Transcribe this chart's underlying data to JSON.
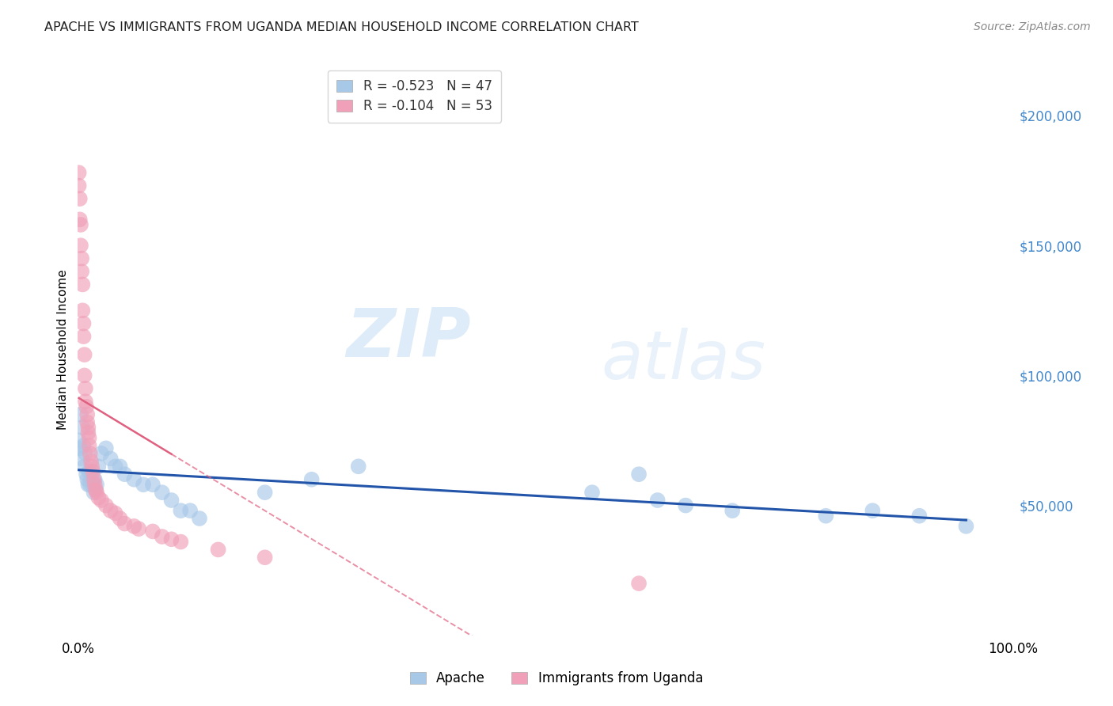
{
  "title": "APACHE VS IMMIGRANTS FROM UGANDA MEDIAN HOUSEHOLD INCOME CORRELATION CHART",
  "source": "Source: ZipAtlas.com",
  "ylabel": "Median Household Income",
  "xlim": [
    0,
    1.0
  ],
  "ylim": [
    0,
    220000
  ],
  "ytick_values": [
    50000,
    100000,
    150000,
    200000
  ],
  "ytick_labels": [
    "$50,000",
    "$100,000",
    "$150,000",
    "$200,000"
  ],
  "apache_color": "#a8c8e8",
  "uganda_color": "#f0a0b8",
  "apache_line_color": "#2255aa",
  "uganda_line_color": "#e06080",
  "watermark_zip": "ZIP",
  "watermark_atlas": "atlas",
  "background_color": "#ffffff",
  "grid_color": "#cccccc",
  "apache_x": [
    0.001,
    0.002,
    0.003,
    0.004,
    0.005,
    0.006,
    0.007,
    0.008,
    0.009,
    0.01,
    0.011,
    0.012,
    0.013,
    0.014,
    0.015,
    0.016,
    0.017,
    0.018,
    0.019,
    0.02,
    0.022,
    0.025,
    0.03,
    0.035,
    0.04,
    0.045,
    0.05,
    0.06,
    0.07,
    0.08,
    0.09,
    0.1,
    0.11,
    0.12,
    0.13,
    0.2,
    0.25,
    0.3,
    0.55,
    0.6,
    0.62,
    0.65,
    0.7,
    0.8,
    0.85,
    0.9,
    0.95
  ],
  "apache_y": [
    75000,
    72000,
    85000,
    68000,
    80000,
    73000,
    65000,
    70000,
    62000,
    60000,
    58000,
    63000,
    58000,
    62000,
    60000,
    58000,
    55000,
    60000,
    56000,
    58000,
    65000,
    70000,
    72000,
    68000,
    65000,
    65000,
    62000,
    60000,
    58000,
    58000,
    55000,
    52000,
    48000,
    48000,
    45000,
    55000,
    60000,
    65000,
    55000,
    62000,
    52000,
    50000,
    48000,
    46000,
    48000,
    46000,
    42000
  ],
  "uganda_x": [
    0.001,
    0.001,
    0.002,
    0.002,
    0.003,
    0.003,
    0.004,
    0.004,
    0.005,
    0.005,
    0.006,
    0.006,
    0.007,
    0.007,
    0.008,
    0.008,
    0.009,
    0.01,
    0.01,
    0.011,
    0.011,
    0.012,
    0.012,
    0.013,
    0.014,
    0.015,
    0.016,
    0.017,
    0.018,
    0.019,
    0.02,
    0.022,
    0.025,
    0.03,
    0.035,
    0.04,
    0.045,
    0.05,
    0.06,
    0.065,
    0.08,
    0.09,
    0.1,
    0.11,
    0.15,
    0.2,
    0.6
  ],
  "uganda_y": [
    178000,
    173000,
    168000,
    160000,
    158000,
    150000,
    145000,
    140000,
    135000,
    125000,
    120000,
    115000,
    108000,
    100000,
    95000,
    90000,
    88000,
    85000,
    82000,
    80000,
    78000,
    76000,
    73000,
    70000,
    67000,
    65000,
    63000,
    60000,
    58000,
    56000,
    55000,
    53000,
    52000,
    50000,
    48000,
    47000,
    45000,
    43000,
    42000,
    41000,
    40000,
    38000,
    37000,
    36000,
    33000,
    30000,
    20000
  ]
}
